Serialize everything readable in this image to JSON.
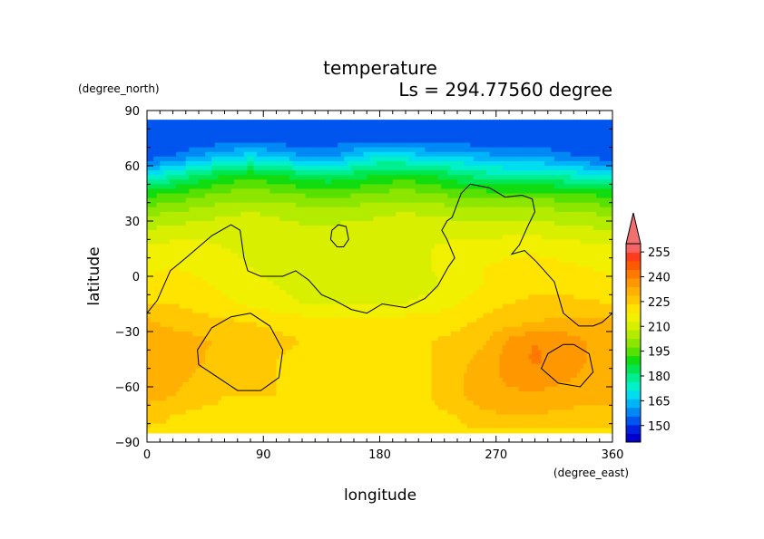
{
  "chart_data": {
    "type": "heatmap",
    "title": "temperature",
    "subtitle": "Ls = 294.77560 degree",
    "xlabel": "longitude",
    "ylabel": "latitude",
    "x_units": "(degree_east)",
    "y_units": "(degree_north)",
    "xlim": [
      0,
      360
    ],
    "ylim": [
      -90,
      90
    ],
    "xticks": [
      0,
      90,
      180,
      270,
      360
    ],
    "yticks": [
      -90,
      -60,
      -30,
      0,
      30,
      60,
      90
    ],
    "xtick_labels": [
      "0",
      "90",
      "180",
      "270",
      "360"
    ],
    "ytick_labels": [
      "−90",
      "−60",
      "−30",
      "0",
      "30",
      "60",
      "90"
    ],
    "colorbar": {
      "levels": [
        140,
        145,
        150,
        155,
        160,
        165,
        170,
        175,
        180,
        185,
        190,
        195,
        200,
        205,
        210,
        215,
        220,
        225,
        230,
        235,
        240,
        245,
        250,
        255,
        260
      ],
      "colors": [
        "#0000cc",
        "#0022e0",
        "#0055ee",
        "#0088f4",
        "#00b4f8",
        "#00dcf0",
        "#00f0c8",
        "#00ee90",
        "#00e650",
        "#10dc10",
        "#58e000",
        "#8ce600",
        "#b4ec00",
        "#d8f000",
        "#f0f000",
        "#ffe400",
        "#ffc800",
        "#ffb000",
        "#ff9800",
        "#ff7800",
        "#ff5a00",
        "#ff3c1e",
        "#f46464"
      ],
      "tick_labels": [
        "150",
        "165",
        "180",
        "195",
        "210",
        "225",
        "240",
        "255"
      ],
      "tick_values": [
        150,
        165,
        180,
        195,
        210,
        225,
        240,
        255
      ],
      "extend": "both",
      "placement": "right"
    },
    "grid": false,
    "field_lat": [
      85,
      75,
      65,
      55,
      45,
      35,
      25,
      15,
      5,
      -5,
      -15,
      -25,
      -35,
      -45,
      -55,
      -65,
      -75,
      -85
    ],
    "field_lon": [
      0,
      20,
      40,
      60,
      80,
      100,
      120,
      140,
      160,
      180,
      200,
      220,
      240,
      260,
      280,
      300,
      320,
      340,
      360
    ],
    "field_values": [
      [
        150,
        150,
        150,
        150,
        150,
        150,
        150,
        150,
        150,
        150,
        150,
        150,
        150,
        150,
        150,
        150,
        150,
        150,
        150
      ],
      [
        150,
        150,
        150,
        150,
        150,
        150,
        150,
        151,
        152,
        152,
        151,
        150,
        150,
        150,
        150,
        150,
        150,
        150,
        150
      ],
      [
        152,
        155,
        160,
        165,
        168,
        165,
        160,
        158,
        165,
        170,
        168,
        165,
        165,
        162,
        160,
        160,
        157,
        154,
        152
      ],
      [
        168,
        175,
        180,
        185,
        188,
        185,
        182,
        180,
        182,
        185,
        187,
        185,
        180,
        177,
        175,
        176,
        174,
        171,
        168
      ],
      [
        188,
        190,
        193,
        196,
        197,
        196,
        194,
        193,
        194,
        196,
        197,
        195,
        193,
        192,
        191,
        192,
        191,
        189,
        188
      ],
      [
        198,
        200,
        202,
        204,
        205,
        204,
        203,
        202,
        203,
        204,
        205,
        204,
        203,
        202,
        202,
        202,
        201,
        200,
        198
      ],
      [
        205,
        207,
        208,
        208,
        208,
        207,
        206,
        206,
        207,
        207,
        208,
        208,
        208,
        207,
        208,
        208,
        207,
        206,
        205
      ],
      [
        211,
        212,
        212,
        210,
        209,
        208,
        207,
        207,
        208,
        208,
        209,
        210,
        212,
        213,
        214,
        214,
        213,
        212,
        211
      ],
      [
        214,
        215,
        214,
        212,
        210,
        208,
        207,
        206,
        207,
        207,
        208,
        210,
        213,
        215,
        216,
        217,
        216,
        215,
        214
      ],
      [
        216,
        217,
        216,
        214,
        212,
        210,
        208,
        207,
        206,
        206,
        207,
        209,
        212,
        215,
        217,
        218,
        218,
        217,
        216
      ],
      [
        220,
        220,
        218,
        216,
        214,
        212,
        210,
        209,
        209,
        209,
        210,
        212,
        215,
        218,
        220,
        222,
        222,
        221,
        220
      ],
      [
        226,
        223,
        222,
        221,
        220,
        219,
        218,
        218,
        218,
        218,
        218,
        218,
        219,
        221,
        223,
        225,
        226,
        226,
        226
      ],
      [
        229,
        228,
        226,
        224,
        222,
        221,
        220,
        220,
        220,
        220,
        220,
        220,
        221,
        224,
        231,
        235,
        233,
        230,
        229
      ],
      [
        230,
        229,
        226,
        222,
        221,
        220,
        219,
        219,
        219,
        219,
        219,
        220,
        223,
        227,
        232,
        236,
        233,
        230,
        230
      ],
      [
        228,
        227,
        224,
        221,
        220,
        220,
        219,
        219,
        219,
        219,
        219,
        220,
        224,
        228,
        231,
        233,
        231,
        229,
        228
      ],
      [
        227,
        225,
        222,
        220,
        220,
        220,
        219,
        219,
        219,
        219,
        219,
        220,
        224,
        228,
        229,
        229,
        228,
        227,
        227
      ],
      [
        222,
        220,
        219,
        219,
        219,
        219,
        219,
        219,
        219,
        219,
        219,
        219,
        220,
        224,
        225,
        225,
        224,
        223,
        222
      ],
      [
        219,
        219,
        219,
        219,
        219,
        219,
        219,
        219,
        219,
        219,
        219,
        219,
        219,
        219,
        219,
        219,
        219,
        219,
        219
      ]
    ],
    "contours": [
      {
        "name": "coastline-main",
        "points": [
          [
            0,
            -20
          ],
          [
            8,
            -13
          ],
          [
            18,
            3
          ],
          [
            30,
            10
          ],
          [
            50,
            22
          ],
          [
            65,
            28
          ],
          [
            72,
            25
          ],
          [
            75,
            10
          ],
          [
            78,
            3
          ],
          [
            88,
            0
          ],
          [
            105,
            0
          ],
          [
            115,
            3
          ],
          [
            125,
            -2
          ],
          [
            135,
            -10
          ],
          [
            145,
            -13
          ],
          [
            158,
            -18
          ],
          [
            170,
            -20
          ],
          [
            182,
            -15
          ],
          [
            200,
            -17
          ],
          [
            215,
            -12
          ],
          [
            225,
            -5
          ],
          [
            233,
            5
          ],
          [
            238,
            10
          ],
          [
            232,
            20
          ],
          [
            228,
            25
          ],
          [
            232,
            30
          ],
          [
            236,
            32
          ],
          [
            243,
            45
          ],
          [
            250,
            50
          ],
          [
            265,
            48
          ],
          [
            277,
            43
          ],
          [
            290,
            44
          ],
          [
            298,
            42
          ],
          [
            300,
            35
          ],
          [
            295,
            28
          ],
          [
            288,
            17
          ],
          [
            282,
            12
          ],
          [
            292,
            14
          ],
          [
            301,
            8
          ],
          [
            315,
            -3
          ],
          [
            322,
            -20
          ],
          [
            334,
            -27
          ],
          [
            345,
            -27
          ],
          [
            352,
            -25
          ],
          [
            360,
            -20
          ]
        ]
      },
      {
        "name": "crater-west",
        "points": [
          [
            80,
            -20
          ],
          [
            95,
            -27
          ],
          [
            105,
            -40
          ],
          [
            102,
            -55
          ],
          [
            88,
            -62
          ],
          [
            70,
            -62
          ],
          [
            55,
            -55
          ],
          [
            40,
            -48
          ],
          [
            39,
            -40
          ],
          [
            50,
            -28
          ],
          [
            65,
            -22
          ],
          [
            80,
            -20
          ]
        ]
      },
      {
        "name": "crater-east",
        "points": [
          [
            330,
            -37
          ],
          [
            342,
            -42
          ],
          [
            345,
            -52
          ],
          [
            335,
            -60
          ],
          [
            318,
            -58
          ],
          [
            305,
            -50
          ],
          [
            310,
            -42
          ],
          [
            322,
            -37
          ],
          [
            330,
            -37
          ]
        ]
      },
      {
        "name": "island",
        "points": [
          [
            142,
            20
          ],
          [
            147,
            16
          ],
          [
            152,
            16
          ],
          [
            156,
            20
          ],
          [
            154,
            27
          ],
          [
            148,
            28
          ],
          [
            143,
            25
          ],
          [
            142,
            20
          ]
        ]
      }
    ]
  }
}
